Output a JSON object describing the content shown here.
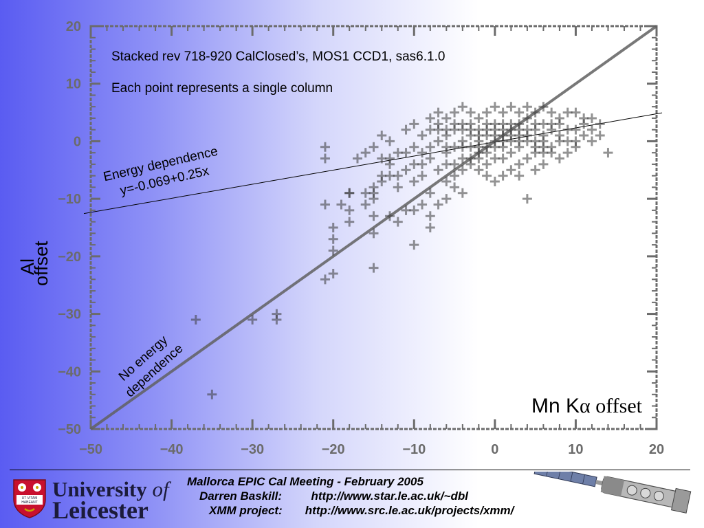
{
  "chart_data": {
    "type": "scatter",
    "xlabel_prefix": "Mn K",
    "xlabel_symbol": "α",
    "xlabel_suffix": " offset",
    "ylabel": "Al offset",
    "xlim": [
      -50,
      20
    ],
    "ylim": [
      -50,
      20
    ],
    "x_ticks": [
      -50,
      -40,
      -30,
      -20,
      -10,
      0,
      10,
      20
    ],
    "y_ticks": [
      -50,
      -40,
      -30,
      -20,
      -10,
      0,
      10,
      20
    ],
    "x_tick_labels": [
      "−50",
      "−40",
      "−30",
      "−20",
      "−10",
      "0",
      "10",
      "20"
    ],
    "y_tick_labels": [
      "−50",
      "−40",
      "−30",
      "−20",
      "−10",
      "0",
      "10",
      "20"
    ],
    "annotation_1": "Stacked rev 718-920 CalClosed’s, MOS1 CCD1, sas6.1.0",
    "annotation_2": "Each point represents a single column",
    "fit_line_label_1": "Energy dependence",
    "fit_line_label_2": "y=-0.069+0.25x",
    "identity_line_label_1": "No energy",
    "identity_line_label_2": "dependence",
    "lines": [
      {
        "kind": "fit",
        "intercept": -0.069,
        "slope": 0.25
      },
      {
        "kind": "identity",
        "intercept": 0,
        "slope": 1
      }
    ],
    "points": [
      [
        -35,
        -44
      ],
      [
        -37,
        -31
      ],
      [
        -30,
        -31
      ],
      [
        -27,
        -31
      ],
      [
        -27,
        -30
      ],
      [
        -21,
        -24
      ],
      [
        -20,
        -23
      ],
      [
        -20,
        -17
      ],
      [
        -20,
        -19
      ],
      [
        -20,
        -15
      ],
      [
        -18,
        -14
      ],
      [
        -18,
        -12
      ],
      [
        -18,
        -9
      ],
      [
        -21,
        -11
      ],
      [
        -21,
        -3
      ],
      [
        -21,
        -1
      ],
      [
        -19,
        -11
      ],
      [
        -16,
        -11
      ],
      [
        -16,
        -9
      ],
      [
        -15,
        -8
      ],
      [
        -15,
        -10
      ],
      [
        -15,
        -13
      ],
      [
        -15,
        -16
      ],
      [
        -15,
        -9
      ],
      [
        -18,
        -9
      ],
      [
        -14,
        -6
      ],
      [
        -13,
        -6
      ],
      [
        -12,
        -6
      ],
      [
        -13,
        -4
      ],
      [
        -14,
        -7
      ],
      [
        -13,
        -13
      ],
      [
        -12,
        -14
      ],
      [
        -11,
        -12
      ],
      [
        -9,
        -11
      ],
      [
        -10,
        -18
      ],
      [
        -8,
        -15
      ],
      [
        -8,
        -13
      ],
      [
        -10,
        -12
      ],
      [
        -15,
        -22
      ],
      [
        -17,
        -3
      ],
      [
        -16,
        -2
      ],
      [
        -15,
        -1
      ],
      [
        -14,
        -3
      ],
      [
        -13,
        -3
      ],
      [
        -12,
        -2
      ],
      [
        -14,
        1
      ],
      [
        -13,
        0
      ],
      [
        -11,
        -2
      ],
      [
        -10,
        -1
      ],
      [
        -9,
        -4
      ],
      [
        -8,
        -3
      ],
      [
        -7,
        -5
      ],
      [
        -6,
        -7
      ],
      [
        -5,
        -8
      ],
      [
        -4,
        -9
      ],
      [
        -8,
        -9
      ],
      [
        -7,
        -11
      ],
      [
        -6,
        -10
      ],
      [
        -10,
        -7
      ],
      [
        -9,
        -6
      ],
      [
        -6,
        -2
      ],
      [
        -5,
        -4
      ],
      [
        -4,
        -3
      ],
      [
        -3,
        -4
      ],
      [
        -2,
        -5
      ],
      [
        -1,
        -6
      ],
      [
        0,
        -7
      ],
      [
        1,
        -6
      ],
      [
        2,
        -5
      ],
      [
        3,
        -6
      ],
      [
        5,
        -5
      ],
      [
        6,
        -4
      ],
      [
        8,
        -3
      ],
      [
        9,
        -2
      ],
      [
        4,
        -10
      ],
      [
        -11,
        2
      ],
      [
        -10,
        3
      ],
      [
        -9,
        1
      ],
      [
        -7,
        0
      ],
      [
        -6,
        1
      ],
      [
        -5,
        2
      ],
      [
        -4,
        3
      ],
      [
        -3,
        2
      ],
      [
        -2,
        1
      ],
      [
        -1,
        2
      ],
      [
        0,
        3
      ],
      [
        1,
        2
      ],
      [
        2,
        3
      ],
      [
        3,
        2
      ],
      [
        4,
        1
      ],
      [
        5,
        2
      ],
      [
        6,
        3
      ],
      [
        7,
        2
      ],
      [
        8,
        1
      ],
      [
        9,
        0
      ],
      [
        10,
        2
      ],
      [
        11,
        3
      ],
      [
        12,
        4
      ],
      [
        13,
        1
      ],
      [
        14,
        -2
      ],
      [
        -8,
        4
      ],
      [
        -7,
        5
      ],
      [
        -6,
        4
      ],
      [
        -5,
        5
      ],
      [
        -4,
        6
      ],
      [
        -3,
        5
      ],
      [
        -2,
        4
      ],
      [
        -1,
        5
      ],
      [
        0,
        6
      ],
      [
        1,
        5
      ],
      [
        2,
        6
      ],
      [
        3,
        5
      ],
      [
        4,
        6
      ],
      [
        5,
        5
      ],
      [
        6,
        6
      ],
      [
        7,
        5
      ],
      [
        8,
        4
      ],
      [
        9,
        5
      ],
      [
        10,
        5
      ],
      [
        11,
        4
      ],
      [
        -4,
        0
      ],
      [
        -3,
        -1
      ],
      [
        -2,
        0
      ],
      [
        -1,
        -1
      ],
      [
        0,
        0
      ],
      [
        1,
        -1
      ],
      [
        2,
        0
      ],
      [
        3,
        -1
      ],
      [
        4,
        0
      ],
      [
        5,
        -1
      ],
      [
        6,
        0
      ],
      [
        7,
        -1
      ],
      [
        8,
        0
      ],
      [
        -2,
        -2
      ],
      [
        0,
        -3
      ],
      [
        2,
        -2
      ],
      [
        4,
        -3
      ],
      [
        6,
        -2
      ],
      [
        -3,
        3
      ],
      [
        -1,
        3
      ],
      [
        1,
        3
      ],
      [
        3,
        3
      ],
      [
        5,
        3
      ],
      [
        7,
        3
      ],
      [
        -5,
        -1
      ],
      [
        -6,
        -1
      ],
      [
        0,
        1
      ],
      [
        1,
        1
      ],
      [
        -1,
        1
      ],
      [
        2,
        1
      ],
      [
        -2,
        2
      ],
      [
        3,
        0
      ],
      [
        -4,
        2
      ],
      [
        4,
        4
      ],
      [
        -3,
        -3
      ],
      [
        -5,
        3
      ],
      [
        -7,
        2
      ],
      [
        -8,
        -1
      ],
      [
        -9,
        -2
      ],
      [
        -10,
        -4
      ],
      [
        -11,
        -5
      ],
      [
        -12,
        -8
      ],
      [
        -6,
        -4
      ],
      [
        -5,
        -6
      ],
      [
        -4,
        -5
      ],
      [
        -2,
        -3
      ],
      [
        -1,
        -4
      ],
      [
        1,
        -3
      ],
      [
        3,
        -4
      ],
      [
        5,
        -2
      ],
      [
        7,
        -2
      ],
      [
        9,
        2
      ],
      [
        10,
        0
      ],
      [
        11,
        1
      ],
      [
        12,
        2
      ],
      [
        13,
        3
      ],
      [
        12,
        0
      ],
      [
        10,
        -1
      ],
      [
        8,
        3
      ],
      [
        6,
        1
      ],
      [
        -4,
        -1
      ],
      [
        -3,
        1
      ],
      [
        -1,
        -2
      ],
      [
        0,
        2
      ],
      [
        2,
        2
      ],
      [
        1,
        0
      ],
      [
        -2,
        -1
      ],
      [
        0,
        -1
      ],
      [
        3,
        1
      ],
      [
        4,
        2
      ],
      [
        5,
        0
      ],
      [
        6,
        -1
      ],
      [
        -6,
        2
      ],
      [
        -7,
        3
      ],
      [
        -8,
        2
      ]
    ]
  },
  "footer": {
    "line_1": "Mallorca EPIC Cal Meeting - February 2005",
    "line_2": "Darren Baskill:         http://www.star.le.ac.uk/~dbl",
    "line_3": "XMM project:       http://www.src.le.ac.uk/projects/xmm/"
  },
  "logo": {
    "word_1": "University",
    "word_of": "of",
    "word_2": "Leicester",
    "motto_1": "UT VITAM",
    "motto_2": "HABEANT"
  },
  "colors": {
    "background_left": "#5a5cf2",
    "background_right": "#ffffff",
    "axis_gray": "#6b6b6b",
    "point_gray": "#3a3a3a"
  }
}
